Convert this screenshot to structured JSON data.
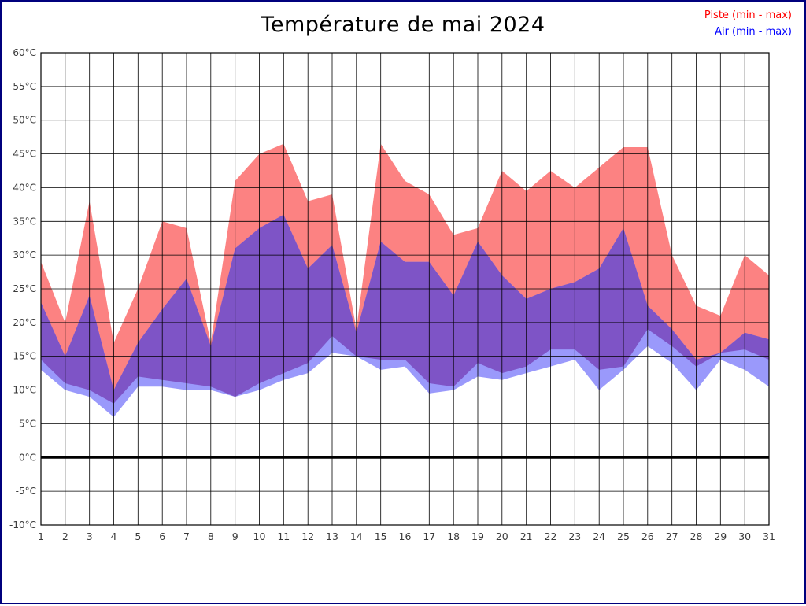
{
  "chart_data": {
    "type": "area",
    "title": "Température de mai 2024",
    "xlabel": "",
    "ylabel": "",
    "ylim": [
      -10,
      60
    ],
    "ytick_step": 5,
    "ytick_suffix": "°C",
    "grid": true,
    "legend_position": "top-right",
    "zero_line": 0,
    "x": [
      1,
      2,
      3,
      4,
      5,
      6,
      7,
      8,
      9,
      10,
      11,
      12,
      13,
      14,
      15,
      16,
      17,
      18,
      19,
      20,
      21,
      22,
      23,
      24,
      25,
      26,
      27,
      28,
      29,
      30,
      31
    ],
    "series": [
      {
        "name": "Piste (min - max)",
        "legend_color": "#ff0000",
        "color": "#fc8282",
        "min": [
          14.5,
          11,
          10,
          8,
          12,
          11.5,
          11,
          10.5,
          9,
          11,
          12.5,
          14,
          18,
          15,
          14.5,
          14.5,
          11,
          10.5,
          14,
          12.5,
          13.5,
          16,
          16,
          13,
          13.5,
          19,
          16.5,
          13.5,
          15.5,
          16,
          14.5
        ],
        "max": [
          29,
          20,
          38,
          17,
          25,
          35,
          34,
          17,
          41,
          45,
          46.5,
          38,
          39,
          19,
          46.5,
          41,
          39,
          33,
          34,
          42.5,
          39.5,
          42.5,
          40,
          43,
          46,
          46,
          30,
          22.5,
          21,
          30,
          27
        ]
      },
      {
        "name": "Air (min - max)",
        "legend_color": "#0000ff",
        "color": "#9a99fb",
        "min": [
          13,
          10,
          9,
          6,
          10.5,
          10.5,
          10,
          10,
          9,
          10,
          11.5,
          12.5,
          15.5,
          15,
          13,
          13.5,
          9.5,
          10,
          12,
          11.5,
          12.5,
          13.5,
          14.5,
          10,
          13,
          16.5,
          14,
          10,
          14.5,
          13,
          10.5
        ],
        "max": [
          23,
          15,
          24,
          10,
          17,
          22,
          26.5,
          16.5,
          31,
          34,
          36,
          28,
          31.5,
          18.5,
          32,
          29,
          29,
          24,
          32,
          27,
          23.5,
          25,
          26,
          28,
          34,
          22.5,
          19,
          14.5,
          15.5,
          18.5,
          17.5
        ]
      }
    ],
    "overlap_color": "#7e54c6",
    "axis_text_color": "#3a3a3a",
    "grid_color": "#000000",
    "border_color": "#000000"
  }
}
